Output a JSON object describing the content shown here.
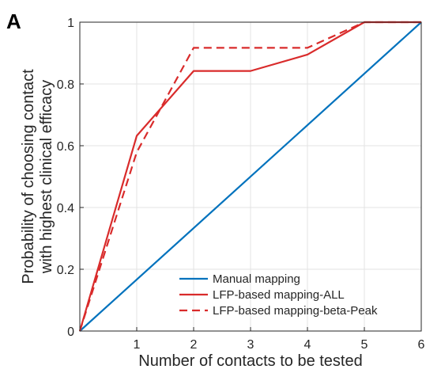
{
  "panel_label": "A",
  "chart_data": {
    "type": "line",
    "xlabel": "Number of contacts to be tested",
    "ylabel_lines": [
      "Probability of choosing contact",
      "with highest clinical efficacy"
    ],
    "xlim": [
      0,
      6
    ],
    "ylim": [
      0,
      1
    ],
    "xticks": [
      1,
      2,
      3,
      4,
      5,
      6
    ],
    "yticks": [
      0,
      0.2,
      0.4,
      0.6,
      0.8,
      1
    ],
    "ytick_labels": [
      "0",
      "0.2",
      "0.4",
      "0.6",
      "0.8",
      "1"
    ],
    "grid": true,
    "legend_position": "bottom-right",
    "series": [
      {
        "name": "Manual mapping",
        "color": "#0072BD",
        "dash": "solid",
        "x": [
          0,
          6
        ],
        "y": [
          0,
          1
        ]
      },
      {
        "name": "LFP-based mapping-ALL",
        "color": "#D92B2B",
        "dash": "solid",
        "x": [
          0,
          1,
          2,
          3,
          4,
          5,
          6
        ],
        "y": [
          0,
          0.632,
          0.842,
          0.842,
          0.895,
          1,
          1
        ]
      },
      {
        "name": "LFP-based mapping-beta-Peak",
        "color": "#D92B2B",
        "dash": "dashed",
        "x": [
          0,
          1,
          2,
          3,
          4,
          5,
          6
        ],
        "y": [
          0,
          0.579,
          0.917,
          0.917,
          0.917,
          1,
          1
        ]
      }
    ]
  }
}
